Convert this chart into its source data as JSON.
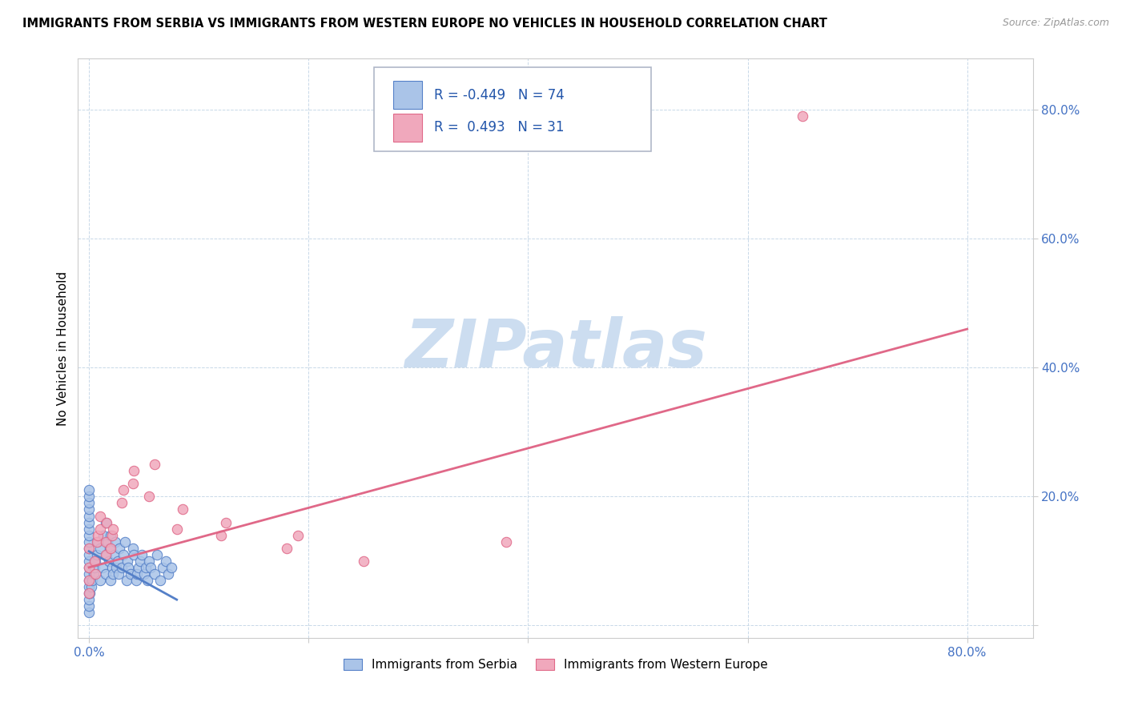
{
  "title": "IMMIGRANTS FROM SERBIA VS IMMIGRANTS FROM WESTERN EUROPE NO VEHICLES IN HOUSEHOLD CORRELATION CHART",
  "source": "Source: ZipAtlas.com",
  "ylabel": "No Vehicles in Household",
  "legend_label_1": "Immigrants from Serbia",
  "legend_label_2": "Immigrants from Western Europe",
  "R1": -0.449,
  "N1": 74,
  "R2": 0.493,
  "N2": 31,
  "color_serbia": "#aac4e8",
  "color_western": "#f0a8bc",
  "color_serbia_edge": "#5580c8",
  "color_western_edge": "#e06888",
  "trendline_serbia": "#5580c8",
  "trendline_western": "#e06888",
  "y_ticks": [
    0.0,
    0.2,
    0.4,
    0.6,
    0.8
  ],
  "y_tick_labels": [
    "",
    "20.0%",
    "40.0%",
    "60.0%",
    "80.0%"
  ],
  "x_ticks": [
    0.0,
    0.2,
    0.4,
    0.6,
    0.8
  ],
  "x_tick_labels": [
    "0.0%",
    "",
    "",
    "",
    "80.0%"
  ],
  "xlim": [
    -0.01,
    0.86
  ],
  "ylim": [
    -0.02,
    0.88
  ],
  "watermark_text": "ZIPatlas",
  "watermark_color": "#ccddf0",
  "serbia_x": [
    0.0,
    0.0,
    0.0,
    0.0,
    0.0,
    0.0,
    0.0,
    0.0,
    0.0,
    0.0,
    0.0,
    0.0,
    0.0,
    0.0,
    0.0,
    0.0,
    0.0,
    0.0,
    0.0,
    0.0,
    0.001,
    0.002,
    0.003,
    0.004,
    0.005,
    0.006,
    0.007,
    0.008,
    0.01,
    0.01,
    0.012,
    0.013,
    0.015,
    0.015,
    0.016,
    0.017,
    0.018,
    0.019,
    0.02,
    0.02,
    0.021,
    0.022,
    0.023,
    0.024,
    0.025,
    0.026,
    0.027,
    0.028,
    0.03,
    0.031,
    0.033,
    0.034,
    0.035,
    0.036,
    0.038,
    0.04,
    0.041,
    0.043,
    0.044,
    0.045,
    0.047,
    0.048,
    0.05,
    0.052,
    0.053,
    0.055,
    0.056,
    0.06,
    0.062,
    0.065,
    0.067,
    0.07,
    0.072,
    0.075
  ],
  "serbia_y": [
    0.02,
    0.03,
    0.04,
    0.05,
    0.06,
    0.07,
    0.08,
    0.09,
    0.1,
    0.11,
    0.12,
    0.13,
    0.14,
    0.15,
    0.16,
    0.17,
    0.18,
    0.19,
    0.2,
    0.21,
    0.05,
    0.06,
    0.07,
    0.08,
    0.09,
    0.1,
    0.11,
    0.13,
    0.07,
    0.12,
    0.09,
    0.14,
    0.08,
    0.16,
    0.11,
    0.13,
    0.1,
    0.12,
    0.07,
    0.14,
    0.09,
    0.08,
    0.11,
    0.13,
    0.09,
    0.1,
    0.08,
    0.12,
    0.09,
    0.11,
    0.13,
    0.07,
    0.1,
    0.09,
    0.08,
    0.12,
    0.11,
    0.07,
    0.08,
    0.09,
    0.1,
    0.11,
    0.08,
    0.09,
    0.07,
    0.1,
    0.09,
    0.08,
    0.11,
    0.07,
    0.09,
    0.1,
    0.08,
    0.09
  ],
  "western_x": [
    0.0,
    0.0,
    0.0,
    0.0,
    0.005,
    0.006,
    0.007,
    0.008,
    0.01,
    0.01,
    0.015,
    0.015,
    0.016,
    0.02,
    0.021,
    0.022,
    0.03,
    0.031,
    0.04,
    0.041,
    0.055,
    0.06,
    0.08,
    0.085,
    0.12,
    0.125,
    0.18,
    0.19,
    0.25,
    0.38,
    0.65
  ],
  "western_y": [
    0.05,
    0.07,
    0.09,
    0.12,
    0.1,
    0.08,
    0.13,
    0.14,
    0.15,
    0.17,
    0.11,
    0.13,
    0.16,
    0.12,
    0.14,
    0.15,
    0.19,
    0.21,
    0.22,
    0.24,
    0.2,
    0.25,
    0.15,
    0.18,
    0.14,
    0.16,
    0.12,
    0.14,
    0.1,
    0.13,
    0.79
  ],
  "trendline_western_x0": 0.0,
  "trendline_western_y0": 0.09,
  "trendline_western_x1": 0.8,
  "trendline_western_y1": 0.46,
  "trendline_serbia_x0": 0.0,
  "trendline_serbia_y0": 0.115,
  "trendline_serbia_x1": 0.08,
  "trendline_serbia_y1": 0.04
}
